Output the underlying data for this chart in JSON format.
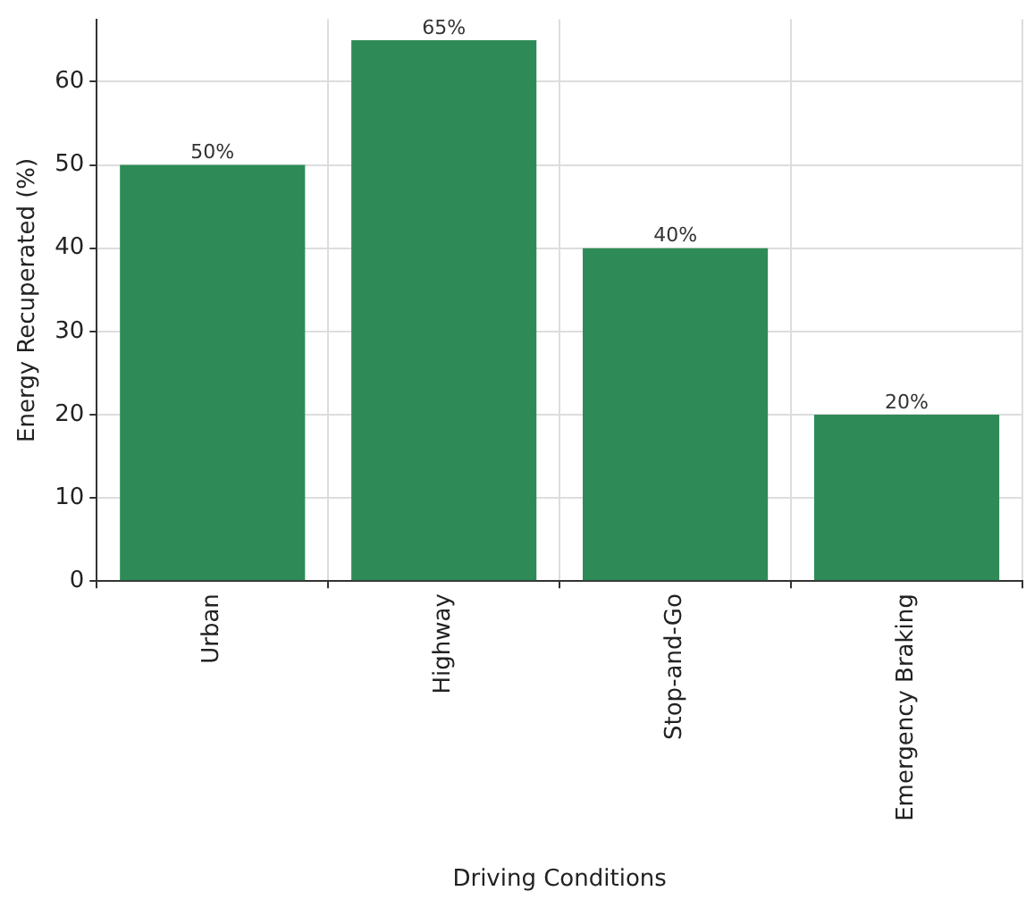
{
  "chart_data": {
    "type": "bar",
    "xlabel": "Driving Conditions",
    "ylabel": "Energy Recuperated (%)",
    "categories": [
      "Urban",
      "Highway",
      "Stop-and-Go",
      "Emergency Braking"
    ],
    "values": [
      50,
      65,
      40,
      20
    ],
    "color": "#2e8b57",
    "value_labels": [
      "50%",
      "65%",
      "40%",
      "20%"
    ],
    "ylim": [
      0,
      67.5
    ],
    "yticks": [
      0,
      10,
      20,
      30,
      40,
      50,
      60
    ],
    "grid": true
  }
}
